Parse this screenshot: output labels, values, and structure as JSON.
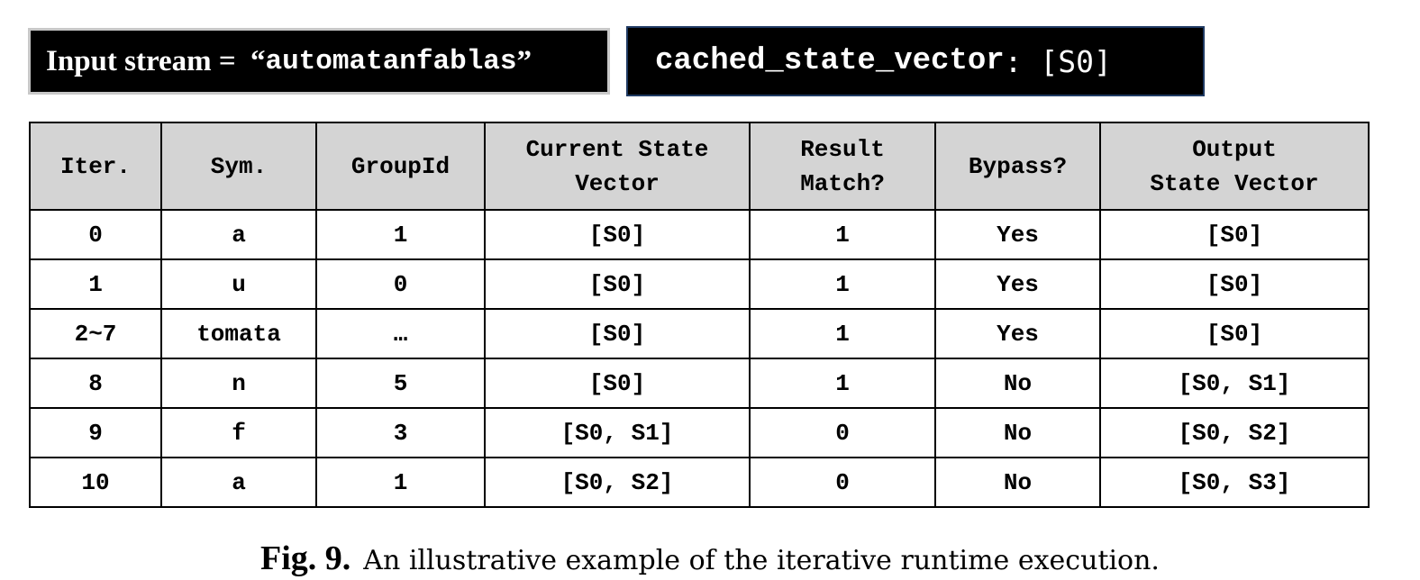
{
  "input_banner": {
    "prefix": "Input stream = ",
    "open_quote": "“",
    "value": "automatanfablas",
    "close_quote": "”"
  },
  "cache_banner": {
    "name": "cached_state_vector",
    "separator": ":",
    "value": " [S0]"
  },
  "table": {
    "headers": [
      [
        "Iter.",
        ""
      ],
      [
        "Sym.",
        ""
      ],
      [
        "GroupId",
        ""
      ],
      [
        "Current State",
        "Vector"
      ],
      [
        "Result",
        "Match?"
      ],
      [
        "Bypass?",
        ""
      ],
      [
        "Output",
        "State Vector"
      ]
    ],
    "rows": [
      [
        "0",
        "a",
        "1",
        "[S0]",
        "1",
        "Yes",
        "[S0]"
      ],
      [
        "1",
        "u",
        "0",
        "[S0]",
        "1",
        "Yes",
        "[S0]"
      ],
      [
        "2~7",
        "tomata",
        "…",
        "[S0]",
        "1",
        "Yes",
        "[S0]"
      ],
      [
        "8",
        "n",
        "5",
        "[S0]",
        "1",
        "No",
        "[S0, S1]"
      ],
      [
        "9",
        "f",
        "3",
        "[S0, S1]",
        "0",
        "No",
        "[S0, S2]"
      ],
      [
        "10",
        "a",
        "1",
        "[S0, S2]",
        "0",
        "No",
        "[S0, S3]"
      ]
    ]
  },
  "caption": {
    "label": "Fig. 9.",
    "text": "An illustrative example of the iterative runtime execution."
  }
}
